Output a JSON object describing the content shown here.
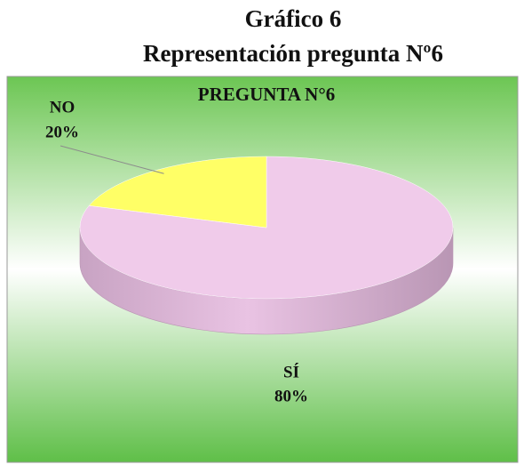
{
  "chart_data": {
    "type": "pie3d",
    "title": "Gráfico 6",
    "subtitle": "Representación pregunta Nº6",
    "chart_title": "PREGUNTA N°6",
    "categories": [
      "SÍ",
      "NO"
    ],
    "values": [
      80,
      20
    ],
    "value_labels": [
      "80%",
      "20%"
    ],
    "colors": [
      "#f0cbea",
      "#ffff66"
    ]
  }
}
